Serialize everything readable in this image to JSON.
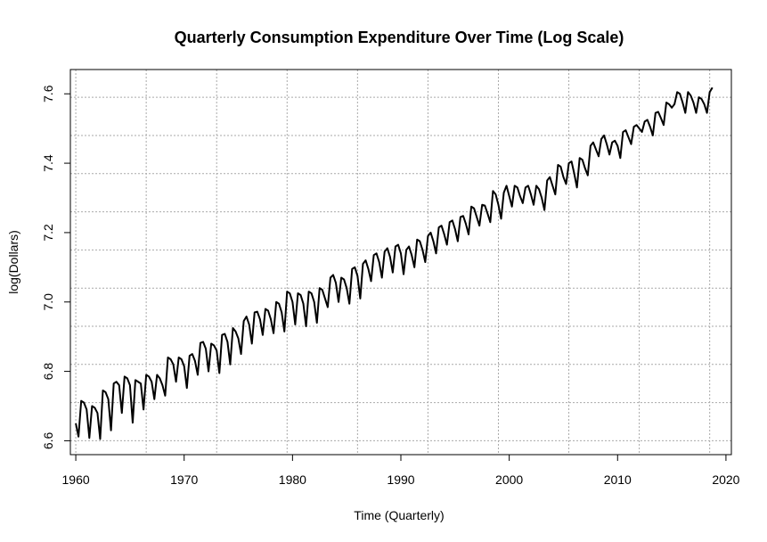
{
  "chart_data": {
    "type": "line",
    "title": "Quarterly Consumption Expenditure Over Time (Log Scale)",
    "xlabel": "Time (Quarterly)",
    "ylabel": "log(Dollars)",
    "xlim": [
      1960,
      2020
    ],
    "ylim": [
      6.6,
      7.6
    ],
    "x_ticks": [
      1960,
      1970,
      1980,
      1990,
      2000,
      2010,
      2020
    ],
    "y_ticks": [
      6.6,
      6.8,
      7.0,
      7.2,
      7.4,
      7.6
    ],
    "grid": true,
    "series_color": "#000000",
    "start_year": 1960,
    "frequency": 4,
    "series": [
      {
        "values": [
          6.65,
          6.612,
          6.715,
          6.71,
          6.69,
          6.608,
          6.7,
          6.695,
          6.68,
          6.605,
          6.745,
          6.74,
          6.72,
          6.63,
          6.765,
          6.77,
          6.76,
          6.68,
          6.785,
          6.78,
          6.76,
          6.652,
          6.775,
          6.77,
          6.765,
          6.69,
          6.79,
          6.785,
          6.77,
          6.72,
          6.79,
          6.78,
          6.76,
          6.73,
          6.84,
          6.835,
          6.82,
          6.77,
          6.84,
          6.835,
          6.815,
          6.752,
          6.845,
          6.85,
          6.83,
          6.79,
          6.882,
          6.885,
          6.865,
          6.8,
          6.88,
          6.875,
          6.86,
          6.795,
          6.905,
          6.908,
          6.885,
          6.82,
          6.925,
          6.915,
          6.895,
          6.85,
          6.945,
          6.958,
          6.935,
          6.88,
          6.97,
          6.972,
          6.95,
          6.905,
          6.98,
          6.975,
          6.95,
          6.91,
          7.0,
          6.995,
          6.97,
          6.915,
          7.03,
          7.025,
          7.0,
          6.935,
          7.025,
          7.02,
          6.995,
          6.93,
          7.03,
          7.025,
          7.0,
          6.94,
          7.04,
          7.035,
          7.01,
          6.985,
          7.07,
          7.078,
          7.055,
          7.0,
          7.07,
          7.065,
          7.04,
          6.995,
          7.095,
          7.1,
          7.075,
          7.01,
          7.11,
          7.12,
          7.095,
          7.06,
          7.135,
          7.14,
          7.115,
          7.07,
          7.145,
          7.155,
          7.13,
          7.085,
          7.16,
          7.165,
          7.14,
          7.08,
          7.15,
          7.16,
          7.135,
          7.1,
          7.18,
          7.175,
          7.15,
          7.115,
          7.19,
          7.2,
          7.175,
          7.14,
          7.215,
          7.22,
          7.195,
          7.165,
          7.23,
          7.235,
          7.21,
          7.175,
          7.245,
          7.248,
          7.225,
          7.195,
          7.275,
          7.27,
          7.245,
          7.22,
          7.28,
          7.278,
          7.255,
          7.23,
          7.32,
          7.31,
          7.28,
          7.24,
          7.315,
          7.335,
          7.305,
          7.275,
          7.335,
          7.33,
          7.305,
          7.285,
          7.33,
          7.335,
          7.31,
          7.28,
          7.335,
          7.325,
          7.3,
          7.265,
          7.35,
          7.36,
          7.335,
          7.31,
          7.395,
          7.39,
          7.36,
          7.34,
          7.4,
          7.405,
          7.37,
          7.33,
          7.415,
          7.41,
          7.385,
          7.365,
          7.45,
          7.46,
          7.44,
          7.42,
          7.47,
          7.48,
          7.455,
          7.425,
          7.46,
          7.465,
          7.45,
          7.415,
          7.49,
          7.495,
          7.475,
          7.455,
          7.505,
          7.51,
          7.5,
          7.49,
          7.52,
          7.525,
          7.505,
          7.48,
          7.545,
          7.548,
          7.53,
          7.51,
          7.575,
          7.57,
          7.56,
          7.57,
          7.605,
          7.6,
          7.575,
          7.545,
          7.605,
          7.595,
          7.575,
          7.545,
          7.59,
          7.585,
          7.57,
          7.545,
          7.605,
          7.618
        ]
      }
    ]
  }
}
